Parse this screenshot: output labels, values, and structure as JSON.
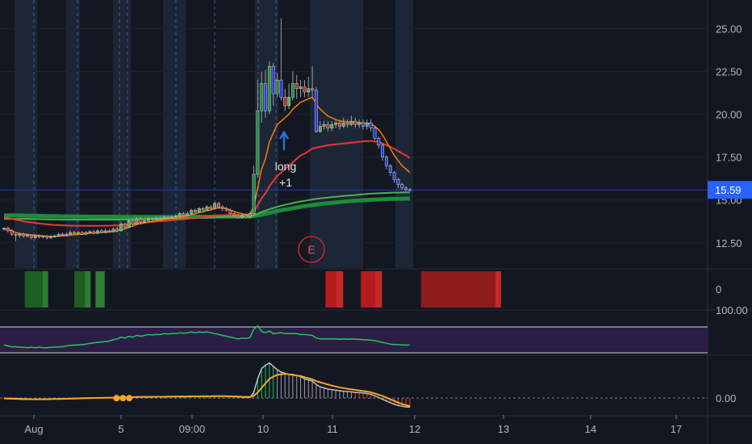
{
  "chart_data": {
    "type": "candlestick",
    "x_ticks": [
      "Aug",
      "5",
      "09:00",
      "10",
      "11",
      "12",
      "13",
      "14",
      "17"
    ],
    "y_ticks": [
      "25.00",
      "22.50",
      "20.00",
      "17.50",
      "15.00",
      "12.50"
    ],
    "ylim": [
      11.5,
      26.2
    ],
    "last_price": "15.59",
    "last_price_value": 15.59,
    "annotations": {
      "signal_text_1": "long",
      "signal_text_2": "+1",
      "event_marker": "E"
    },
    "candles": [
      [
        13.3,
        13.35,
        13.4,
        13.2
      ],
      [
        13.35,
        13.2,
        13.45,
        13.1
      ],
      [
        13.2,
        13.0,
        13.3,
        12.9
      ],
      [
        13.0,
        12.95,
        13.1,
        12.6
      ],
      [
        12.95,
        13.0,
        13.1,
        12.8
      ],
      [
        13.0,
        12.9,
        13.1,
        12.8
      ],
      [
        12.9,
        12.95,
        13.0,
        12.8
      ],
      [
        12.95,
        12.8,
        13.0,
        12.7
      ],
      [
        12.8,
        12.9,
        13.0,
        12.7
      ],
      [
        12.9,
        12.85,
        13.0,
        12.75
      ],
      [
        12.85,
        12.9,
        12.95,
        12.75
      ],
      [
        12.9,
        12.8,
        12.95,
        12.7
      ],
      [
        12.8,
        12.85,
        12.95,
        12.7
      ],
      [
        12.85,
        12.9,
        13.0,
        12.8
      ],
      [
        12.9,
        13.0,
        13.1,
        12.85
      ],
      [
        13.0,
        12.95,
        13.1,
        12.9
      ],
      [
        12.95,
        13.0,
        13.1,
        12.9
      ],
      [
        13.0,
        13.1,
        13.2,
        12.95
      ],
      [
        13.1,
        13.05,
        13.2,
        13.0
      ],
      [
        13.05,
        13.1,
        13.2,
        13.0
      ],
      [
        13.1,
        13.0,
        13.2,
        12.95
      ],
      [
        13.0,
        13.1,
        13.2,
        12.95
      ],
      [
        13.1,
        13.15,
        13.25,
        13.05
      ],
      [
        13.15,
        13.05,
        13.25,
        13.0
      ],
      [
        13.05,
        13.2,
        13.3,
        13.0
      ],
      [
        13.2,
        13.1,
        13.3,
        13.05
      ],
      [
        13.1,
        13.2,
        13.35,
        13.05
      ],
      [
        13.2,
        13.15,
        13.3,
        13.1
      ],
      [
        13.15,
        13.3,
        13.4,
        13.1
      ],
      [
        13.3,
        13.2,
        13.45,
        13.1
      ],
      [
        13.2,
        13.6,
        13.75,
        13.15
      ],
      [
        13.6,
        13.4,
        13.7,
        13.3
      ],
      [
        13.4,
        13.8,
        13.9,
        13.35
      ],
      [
        13.8,
        13.6,
        13.9,
        13.5
      ],
      [
        13.6,
        13.9,
        14.0,
        13.55
      ],
      [
        13.9,
        13.7,
        14.0,
        13.6
      ],
      [
        13.7,
        13.8,
        13.95,
        13.65
      ],
      [
        13.8,
        13.9,
        14.0,
        13.7
      ],
      [
        13.9,
        13.85,
        14.0,
        13.75
      ],
      [
        13.85,
        13.95,
        14.05,
        13.8
      ],
      [
        13.95,
        13.9,
        14.05,
        13.8
      ],
      [
        13.9,
        14.0,
        14.1,
        13.85
      ],
      [
        14.0,
        13.95,
        14.1,
        13.9
      ],
      [
        13.95,
        14.0,
        14.1,
        13.9
      ],
      [
        14.0,
        14.05,
        14.15,
        13.95
      ],
      [
        14.05,
        14.2,
        14.3,
        14.0
      ],
      [
        14.2,
        14.1,
        14.3,
        14.05
      ],
      [
        14.1,
        14.2,
        14.35,
        14.05
      ],
      [
        14.2,
        14.4,
        14.5,
        14.1
      ],
      [
        14.4,
        14.3,
        14.5,
        14.2
      ],
      [
        14.3,
        14.5,
        14.6,
        14.25
      ],
      [
        14.5,
        14.4,
        14.6,
        14.3
      ],
      [
        14.4,
        14.6,
        14.7,
        14.35
      ],
      [
        14.6,
        14.5,
        14.7,
        14.4
      ],
      [
        14.5,
        14.8,
        14.9,
        14.45
      ],
      [
        14.8,
        14.6,
        14.9,
        14.5
      ],
      [
        14.6,
        14.5,
        14.7,
        14.35
      ],
      [
        14.5,
        14.4,
        14.6,
        14.3
      ],
      [
        14.4,
        14.2,
        14.5,
        14.1
      ],
      [
        14.2,
        14.1,
        14.3,
        14.0
      ],
      [
        14.1,
        14.0,
        14.2,
        13.9
      ],
      [
        14.0,
        14.1,
        14.2,
        13.9
      ],
      [
        14.1,
        14.0,
        14.2,
        13.95
      ],
      [
        14.0,
        14.2,
        14.3,
        13.95
      ],
      [
        14.2,
        16.5,
        17.0,
        14.1
      ],
      [
        16.5,
        20.2,
        22.0,
        16.3
      ],
      [
        20.2,
        21.8,
        22.5,
        19.5
      ],
      [
        21.8,
        20.2,
        22.6,
        19.8
      ],
      [
        20.2,
        22.8,
        23.1,
        20.0
      ],
      [
        22.8,
        21.2,
        23.0,
        20.5
      ],
      [
        21.2,
        22.0,
        22.4,
        21.0
      ],
      [
        22.0,
        21.0,
        25.6,
        20.8
      ],
      [
        21.0,
        20.5,
        21.5,
        20.2
      ],
      [
        20.5,
        21.0,
        21.8,
        20.3
      ],
      [
        21.0,
        21.8,
        22.5,
        20.8
      ],
      [
        21.8,
        21.5,
        22.3,
        20.9
      ],
      [
        21.5,
        21.6,
        22.0,
        21.0
      ],
      [
        21.6,
        21.3,
        22.0,
        21.0
      ],
      [
        21.3,
        21.5,
        22.2,
        21.0
      ],
      [
        21.5,
        21.4,
        22.8,
        21.0
      ],
      [
        21.4,
        19.0,
        21.6,
        18.9
      ],
      [
        19.0,
        19.3,
        19.6,
        18.9
      ],
      [
        19.3,
        19.4,
        19.6,
        19.1
      ],
      [
        19.4,
        19.2,
        19.6,
        19.0
      ],
      [
        19.2,
        19.4,
        19.6,
        19.0
      ],
      [
        19.4,
        19.5,
        19.7,
        19.2
      ],
      [
        19.5,
        19.3,
        19.7,
        19.1
      ],
      [
        19.3,
        19.5,
        19.8,
        19.2
      ],
      [
        19.5,
        19.4,
        19.7,
        19.2
      ],
      [
        19.4,
        19.6,
        19.9,
        19.3
      ],
      [
        19.6,
        19.4,
        19.8,
        19.2
      ],
      [
        19.4,
        19.5,
        19.7,
        19.2
      ],
      [
        19.5,
        19.3,
        19.7,
        19.1
      ],
      [
        19.3,
        19.5,
        19.7,
        19.1
      ],
      [
        19.5,
        19.2,
        19.7,
        19.0
      ],
      [
        19.2,
        18.6,
        19.3,
        18.5
      ],
      [
        18.6,
        18.2,
        18.7,
        18.0
      ],
      [
        18.2,
        17.5,
        18.3,
        17.3
      ],
      [
        17.5,
        17.0,
        17.6,
        16.8
      ],
      [
        17.0,
        16.6,
        17.1,
        16.4
      ],
      [
        16.6,
        16.2,
        16.7,
        16.0
      ],
      [
        16.2,
        15.9,
        16.3,
        15.7
      ],
      [
        15.9,
        15.7,
        16.0,
        15.6
      ],
      [
        15.7,
        15.6,
        15.8,
        15.5
      ],
      [
        15.6,
        15.59,
        15.7,
        15.5
      ]
    ],
    "series_ema_fast": [
      13.3,
      13.3,
      13.2,
      13.1,
      13.05,
      13.0,
      13.0,
      12.95,
      12.95,
      12.92,
      12.9,
      12.88,
      12.87,
      12.87,
      12.89,
      12.9,
      12.92,
      12.95,
      12.97,
      13.0,
      13.0,
      13.03,
      13.06,
      13.07,
      13.1,
      13.1,
      13.12,
      13.13,
      13.17,
      13.18,
      13.28,
      13.31,
      13.42,
      13.47,
      13.58,
      13.61,
      13.66,
      13.72,
      13.75,
      13.8,
      13.83,
      13.87,
      13.89,
      13.91,
      13.94,
      14.0,
      14.03,
      14.07,
      14.15,
      14.19,
      14.27,
      14.3,
      14.38,
      14.41,
      14.51,
      14.54,
      14.53,
      14.5,
      14.41,
      14.33,
      14.25,
      14.2,
      14.15,
      14.17,
      14.6,
      15.7,
      16.8,
      17.4,
      18.4,
      18.9,
      19.4,
      19.6,
      19.8,
      20.0,
      20.3,
      20.5,
      20.7,
      20.8,
      20.9,
      21.0,
      20.6,
      20.3,
      20.1,
      19.9,
      19.8,
      19.7,
      19.6,
      19.6,
      19.55,
      19.56,
      19.53,
      19.52,
      19.5,
      19.48,
      19.45,
      19.3,
      19.1,
      18.8,
      18.4,
      18.0,
      17.6,
      17.3,
      17.0,
      16.8,
      16.6
    ],
    "series_ema_slow": [
      14.0,
      13.95,
      13.9,
      13.85,
      13.8,
      13.75,
      13.72,
      13.69,
      13.66,
      13.63,
      13.6,
      13.58,
      13.56,
      13.54,
      13.53,
      13.52,
      13.51,
      13.5,
      13.5,
      13.5,
      13.49,
      13.49,
      13.49,
      13.49,
      13.49,
      13.49,
      13.5,
      13.5,
      13.51,
      13.51,
      13.54,
      13.55,
      13.58,
      13.6,
      13.63,
      13.65,
      13.68,
      13.7,
      13.72,
      13.74,
      13.76,
      13.78,
      13.8,
      13.82,
      13.84,
      13.86,
      13.88,
      13.9,
      13.93,
      13.95,
      13.98,
      14.0,
      14.03,
      14.05,
      14.08,
      14.1,
      14.11,
      14.12,
      14.12,
      14.11,
      14.1,
      14.1,
      14.1,
      14.1,
      14.3,
      14.7,
      15.1,
      15.4,
      15.8,
      16.1,
      16.4,
      16.6,
      16.8,
      17.0,
      17.2,
      17.4,
      17.6,
      17.7,
      17.85,
      18.0,
      18.05,
      18.1,
      18.15,
      18.2,
      18.22,
      18.25,
      18.27,
      18.3,
      18.32,
      18.35,
      18.37,
      18.4,
      18.42,
      18.43,
      18.45,
      18.42,
      18.38,
      18.3,
      18.2,
      18.1,
      17.98,
      17.85,
      17.72,
      17.6,
      17.45
    ],
    "series_sma_green": [
      13.9,
      13.9,
      13.9,
      13.9,
      13.9,
      13.9,
      13.9,
      13.89,
      13.89,
      13.88,
      13.88,
      13.87,
      13.87,
      13.86,
      13.86,
      13.85,
      13.85,
      13.85,
      13.85,
      13.85,
      13.85,
      13.85,
      13.85,
      13.85,
      13.85,
      13.85,
      13.85,
      13.85,
      13.85,
      13.85,
      13.86,
      13.86,
      13.87,
      13.87,
      13.88,
      13.88,
      13.89,
      13.89,
      13.9,
      13.9,
      13.91,
      13.91,
      13.92,
      13.92,
      13.93,
      13.93,
      13.94,
      13.94,
      13.95,
      13.96,
      13.97,
      13.97,
      13.98,
      13.99,
      14.0,
      14.01,
      14.01,
      14.02,
      14.02,
      14.02,
      14.02,
      14.02,
      14.03,
      14.03,
      14.1,
      14.2,
      14.3,
      14.38,
      14.46,
      14.53,
      14.6,
      14.66,
      14.72,
      14.77,
      14.82,
      14.87,
      14.91,
      14.95,
      14.99,
      15.03,
      15.06,
      15.09,
      15.12,
      15.14,
      15.17,
      15.19,
      15.21,
      15.23,
      15.25,
      15.27,
      15.29,
      15.31,
      15.33,
      15.35,
      15.37,
      15.38,
      15.39,
      15.4,
      15.41,
      15.42,
      15.43,
      15.43,
      15.44,
      15.44,
      15.44
    ],
    "series_sma_thick": [
      14.1,
      14.1,
      14.1,
      14.1,
      14.09,
      14.09,
      14.08,
      14.08,
      14.08,
      14.07,
      14.07,
      14.06,
      14.06,
      14.05,
      14.05,
      14.04,
      14.04,
      14.04,
      14.03,
      14.03,
      14.03,
      14.03,
      14.02,
      14.02,
      14.02,
      14.02,
      14.02,
      14.02,
      14.02,
      14.01,
      14.01,
      14.01,
      14.01,
      14.01,
      14.01,
      14.01,
      14.01,
      14.01,
      14.01,
      14.01,
      14.01,
      14.01,
      14.01,
      14.01,
      14.01,
      14.01,
      14.01,
      14.01,
      14.02,
      14.02,
      14.02,
      14.02,
      14.02,
      14.02,
      14.02,
      14.03,
      14.03,
      14.03,
      14.03,
      14.03,
      14.03,
      14.03,
      14.03,
      14.03,
      14.06,
      14.1,
      14.15,
      14.2,
      14.25,
      14.3,
      14.35,
      14.4,
      14.44,
      14.48,
      14.52,
      14.56,
      14.6,
      14.64,
      14.67,
      14.7,
      14.73,
      14.76,
      14.79,
      14.81,
      14.84,
      14.86,
      14.88,
      14.9,
      14.92,
      14.94,
      14.96,
      14.97,
      14.99,
      15.0,
      15.01,
      15.02,
      15.03,
      15.04,
      15.05,
      15.06,
      15.06,
      15.07,
      15.07,
      15.08,
      15.08
    ],
    "panel_sqz_labels": [
      "0"
    ],
    "panel_sqz": [
      {
        "from": 0.035,
        "to": 0.06,
        "color": "#1b5e20"
      },
      {
        "from": 0.06,
        "to": 0.068,
        "color": "#2e7d32"
      },
      {
        "from": 0.105,
        "to": 0.12,
        "color": "#1b5e20"
      },
      {
        "from": 0.12,
        "to": 0.128,
        "color": "#2e7d32"
      },
      {
        "from": 0.135,
        "to": 0.148,
        "color": "#2e7d32"
      },
      {
        "from": 0.46,
        "to": 0.475,
        "color": "#b71c1c"
      },
      {
        "from": 0.475,
        "to": 0.485,
        "color": "#c62828"
      },
      {
        "from": 0.51,
        "to": 0.53,
        "color": "#b71c1c"
      },
      {
        "from": 0.53,
        "to": 0.54,
        "color": "#c62828"
      },
      {
        "from": 0.595,
        "to": 0.7,
        "color": "#8e1b1b"
      },
      {
        "from": 0.7,
        "to": 0.708,
        "color": "#c62828"
      }
    ],
    "panel_rsi_labels": [
      "100.00"
    ],
    "panel_rsi_ylim": [
      0,
      100
    ],
    "panel_rsi": [
      44,
      42,
      40,
      40,
      39,
      39,
      38,
      39,
      38,
      39,
      38,
      38,
      39,
      39,
      40,
      40,
      42,
      43,
      44,
      44,
      45,
      46,
      48,
      49,
      50,
      51,
      52,
      53,
      56,
      58,
      62,
      60,
      64,
      62,
      66,
      64,
      66,
      68,
      67,
      68,
      68,
      70,
      69,
      70,
      70,
      72,
      71,
      72,
      74,
      72,
      74,
      73,
      74,
      72,
      70,
      68,
      66,
      64,
      62,
      60,
      58,
      60,
      59,
      61,
      80,
      88,
      75,
      72,
      76,
      70,
      71,
      72,
      70,
      70,
      70,
      70,
      68,
      68,
      67,
      66,
      60,
      58,
      58,
      58,
      58,
      58,
      57,
      58,
      57,
      58,
      57,
      57,
      56,
      56,
      55,
      54,
      52,
      50,
      48,
      46,
      45,
      45,
      44,
      44,
      44
    ],
    "panel_osc_labels": [
      "0.00"
    ],
    "panel_osc_ylim": [
      -1.2,
      3.5
    ],
    "panel_osc_white": [
      -0.05,
      -0.06,
      -0.07,
      -0.08,
      -0.1,
      -0.12,
      -0.12,
      -0.12,
      -0.12,
      -0.1,
      -0.1,
      -0.09,
      -0.08,
      -0.07,
      -0.06,
      -0.05,
      -0.04,
      -0.03,
      -0.02,
      -0.01,
      0,
      0.01,
      0.02,
      0.02,
      0.03,
      0.03,
      0.04,
      0.04,
      0.05,
      0.05,
      0.08,
      0.08,
      0.1,
      0.1,
      0.12,
      0.12,
      0.12,
      0.12,
      0.13,
      0.13,
      0.13,
      0.14,
      0.14,
      0.14,
      0.14,
      0.15,
      0.15,
      0.15,
      0.16,
      0.16,
      0.17,
      0.17,
      0.17,
      0.17,
      0.18,
      0.18,
      0.17,
      0.16,
      0.14,
      0.12,
      0.1,
      0.08,
      0.07,
      0.06,
      0.5,
      1.7,
      2.6,
      2.9,
      3.1,
      2.8,
      2.5,
      2.3,
      2.2,
      2.1,
      2.1,
      2.0,
      1.9,
      1.7,
      1.6,
      1.5,
      1.2,
      1.0,
      0.9,
      0.8,
      0.75,
      0.7,
      0.65,
      0.6,
      0.58,
      0.55,
      0.5,
      0.48,
      0.45,
      0.4,
      0.35,
      0.2,
      0.05,
      -0.1,
      -0.25,
      -0.4,
      -0.55,
      -0.65,
      -0.72,
      -0.78,
      -0.8
    ],
    "panel_osc_orange": [
      -0.02,
      -0.03,
      -0.04,
      -0.05,
      -0.06,
      -0.08,
      -0.09,
      -0.1,
      -0.1,
      -0.1,
      -0.1,
      -0.1,
      -0.09,
      -0.08,
      -0.08,
      -0.07,
      -0.06,
      -0.05,
      -0.04,
      -0.03,
      -0.02,
      -0.01,
      0,
      0.01,
      0.02,
      0.02,
      0.03,
      0.03,
      0.04,
      0.04,
      0.05,
      0.06,
      0.07,
      0.08,
      0.09,
      0.1,
      0.1,
      0.11,
      0.11,
      0.12,
      0.12,
      0.12,
      0.13,
      0.13,
      0.13,
      0.14,
      0.14,
      0.14,
      0.15,
      0.15,
      0.15,
      0.16,
      0.16,
      0.16,
      0.17,
      0.17,
      0.17,
      0.17,
      0.16,
      0.15,
      0.14,
      0.12,
      0.11,
      0.1,
      0.2,
      0.5,
      0.9,
      1.3,
      1.7,
      1.9,
      2.05,
      2.1,
      2.15,
      2.1,
      2.05,
      2.0,
      1.95,
      1.85,
      1.75,
      1.65,
      1.5,
      1.4,
      1.3,
      1.2,
      1.1,
      1.02,
      0.95,
      0.88,
      0.82,
      0.77,
      0.72,
      0.67,
      0.62,
      0.57,
      0.52,
      0.42,
      0.3,
      0.18,
      0.05,
      -0.1,
      -0.25,
      -0.4,
      -0.52,
      -0.62,
      -0.7
    ],
    "osc_markers": [
      0.265,
      0.28,
      0.295
    ]
  }
}
